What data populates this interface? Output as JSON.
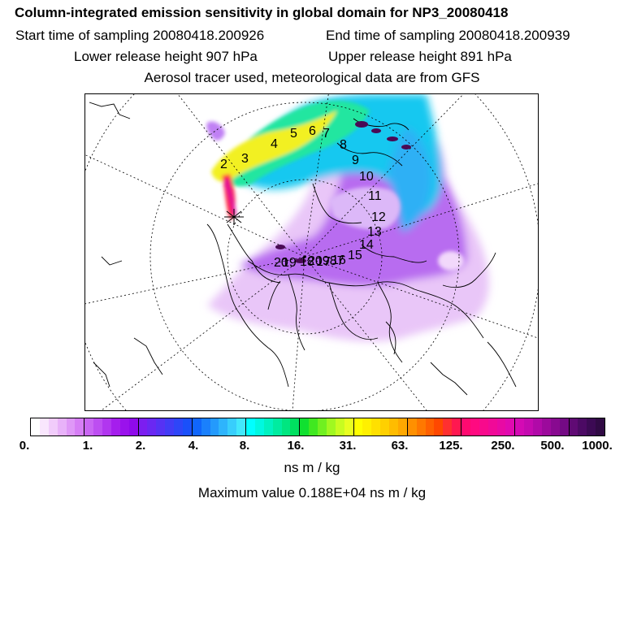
{
  "header": {
    "title": "Column-integrated emission sensitivity in global domain for NP3_20080418",
    "start_time": "Start time of sampling 20080418.200926",
    "end_time": "End time of sampling 20080418.200939",
    "lower_release": "Lower release height  907 hPa",
    "upper_release": "Upper release height  891 hPa",
    "tracer_info": "Aerosol tracer used, meteorological data are from GFS"
  },
  "map": {
    "trajectory_labels": [
      "2",
      "3",
      "4",
      "5",
      "6",
      "7",
      "8",
      "9",
      "10",
      "11",
      "12",
      "13",
      "14",
      "15",
      "16",
      "17",
      "18",
      "19",
      "20"
    ],
    "overlap_label": "20987"
  },
  "colorbar": {
    "tick_labels": [
      "0.",
      "1.",
      "2.",
      "4.",
      "8.",
      "16.",
      "31.",
      "63.",
      "125.",
      "250.",
      "500.",
      "1000."
    ],
    "colors": [
      "#ffffff",
      "#f9e6fd",
      "#f1ccfb",
      "#e8b2f9",
      "#df98f7",
      "#d67ef5",
      "#c966f3",
      "#bd4ef1",
      "#b136ef",
      "#a51eed",
      "#9a12ec",
      "#8f0aeb",
      "#7c1ef0",
      "#6a28f2",
      "#5632f4",
      "#423cf6",
      "#2e46f8",
      "#1a50fa",
      "#1066fc",
      "#1a80fc",
      "#249afc",
      "#2eb4fc",
      "#38cefc",
      "#42e8fc",
      "#00ffff",
      "#00f8e0",
      "#00f2c0",
      "#00eca0",
      "#00e680",
      "#00e060",
      "#10e030",
      "#40e820",
      "#70f020",
      "#a0f820",
      "#c8fc20",
      "#e8fe20",
      "#ffff00",
      "#fff000",
      "#ffe000",
      "#ffd000",
      "#ffbc00",
      "#ffa800",
      "#ff9000",
      "#ff7800",
      "#ff6000",
      "#ff4800",
      "#ff3030",
      "#ff1850",
      "#ff0a70",
      "#ff0a80",
      "#f80a8c",
      "#f00a98",
      "#e80aa4",
      "#e00ab0",
      "#d40ab4",
      "#c40ab0",
      "#b00aa8",
      "#9c0a9c",
      "#880a90",
      "#740a84",
      "#600a74",
      "#4c0a64",
      "#3c0a54",
      "#300a44"
    ]
  },
  "units": "ns m / kg",
  "max_value": "Maximum value  0.188E+04 ns m / kg"
}
